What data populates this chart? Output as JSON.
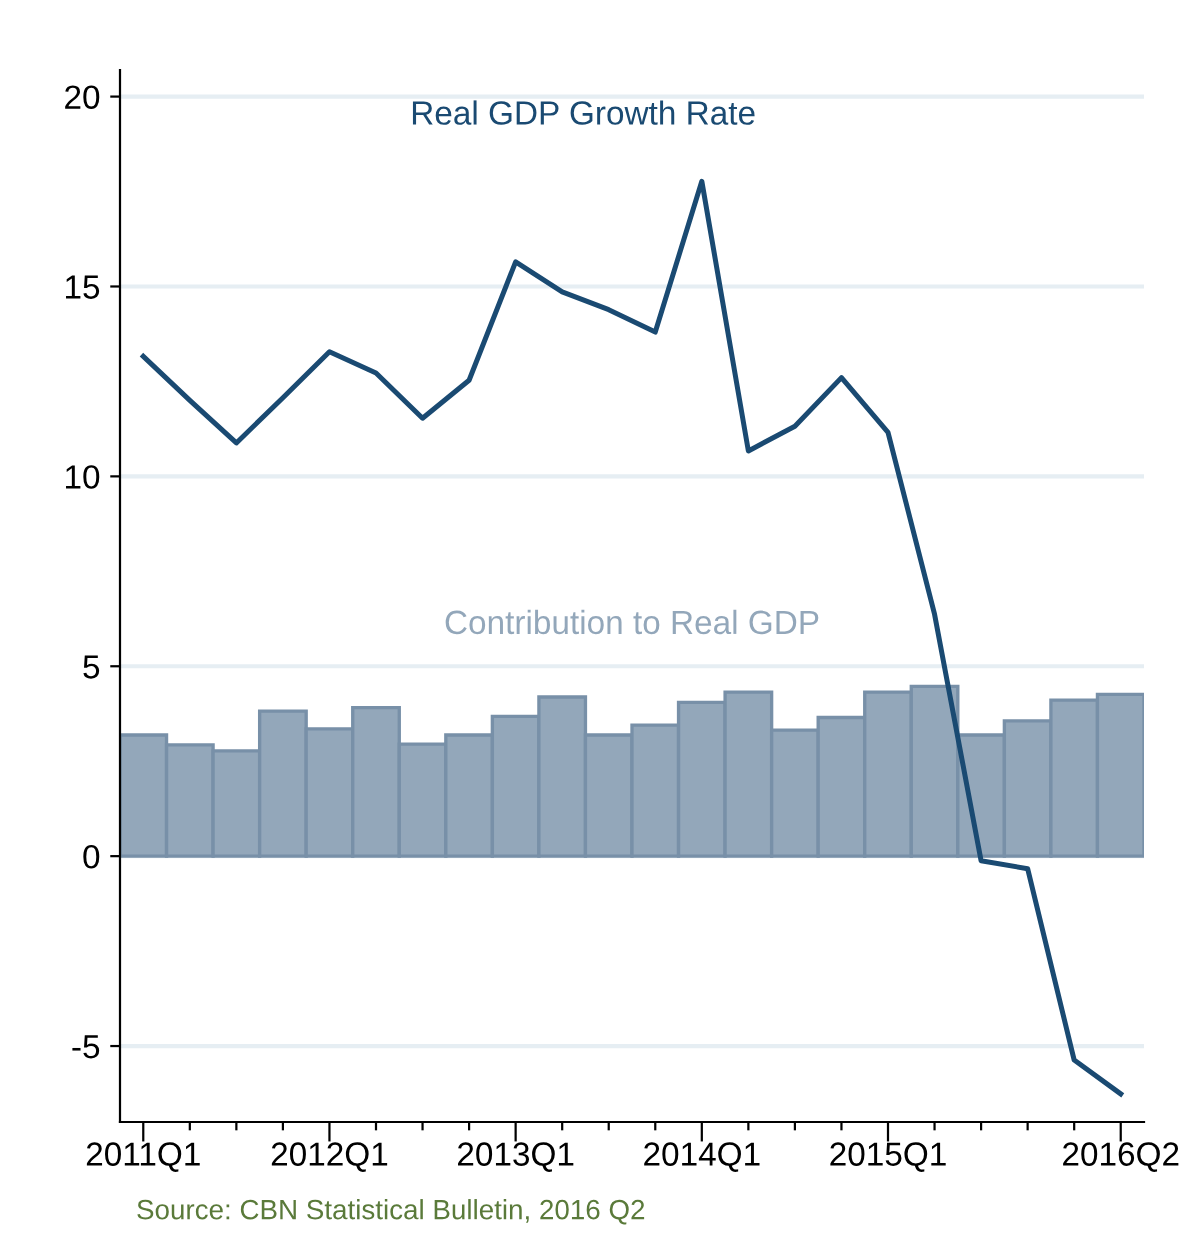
{
  "chart_data": {
    "type": "bar",
    "categories": [
      "2011Q1",
      null,
      null,
      null,
      "2012Q1",
      null,
      null,
      null,
      "2013Q1",
      null,
      null,
      null,
      "2014Q1",
      null,
      null,
      null,
      "2015Q1",
      null,
      null,
      null,
      null,
      "2016Q2"
    ],
    "series": [
      {
        "name": "Contribution to Real GDP",
        "color": "#93a7ba",
        "values": [
          3.19,
          2.93,
          2.77,
          3.82,
          3.35,
          3.91,
          2.95,
          3.19,
          3.68,
          4.19,
          3.19,
          3.45,
          4.05,
          4.32,
          3.32,
          3.65,
          4.32,
          4.47,
          3.19,
          3.56,
          4.11,
          4.26
        ]
      },
      {
        "name": "Real GDP Growth Rate",
        "type": "line",
        "color": "#1a4a72",
        "values": [
          13.16,
          12.0,
          10.88,
          12.07,
          13.28,
          12.72,
          11.53,
          12.53,
          15.65,
          14.86,
          14.39,
          13.8,
          17.77,
          10.67,
          11.32,
          12.6,
          11.16,
          6.37,
          -0.12,
          -0.33,
          -5.37,
          -6.26
        ]
      }
    ],
    "ylim": [
      -7,
      20.7
    ],
    "yticks": [
      -5,
      0,
      5,
      10,
      15,
      20
    ],
    "grid": "y",
    "legend": false,
    "annotations": [
      "Source: CBN Statistical Bulletin, 2016 Q2"
    ]
  }
}
